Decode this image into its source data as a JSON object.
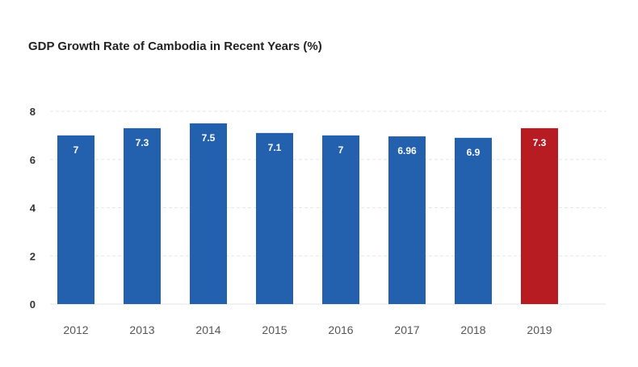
{
  "chart_data": {
    "type": "bar",
    "title": "GDP Growth Rate of Cambodia in Recent Years (%)",
    "xlabel": "",
    "ylabel": "",
    "categories": [
      "2012",
      "2013",
      "2014",
      "2015",
      "2016",
      "2017",
      "2018",
      "2019"
    ],
    "values": [
      7,
      7.3,
      7.5,
      7.1,
      7,
      6.96,
      6.9,
      7.3
    ],
    "data_labels": [
      "7",
      "7.3",
      "7.5",
      "7.1",
      "7",
      "6.96",
      "6.9",
      "7.3"
    ],
    "yticks": [
      "0",
      "2",
      "4",
      "6",
      "8"
    ],
    "ylim": [
      0,
      8
    ],
    "grid": true,
    "legend": "none",
    "colors": {
      "default": "#2360ad",
      "highlight": "#b71c22"
    },
    "highlight_index": 7
  }
}
